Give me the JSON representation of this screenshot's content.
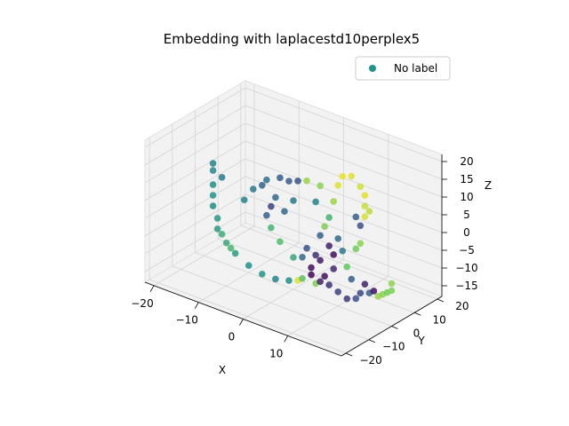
{
  "chart_data": {
    "type": "scatter",
    "title": "Embedding with laplacestd10perplex5",
    "xlabel": "X",
    "ylabel": "Y",
    "zlabel": "Z",
    "xlim": [
      -22,
      22
    ],
    "ylim": [
      -22,
      22
    ],
    "zlim": [
      -18,
      22
    ],
    "x_ticks": [
      -20,
      -10,
      0,
      10
    ],
    "y_ticks": [
      -20,
      -10,
      0,
      10,
      20
    ],
    "z_ticks": [
      -15,
      -10,
      -5,
      0,
      5,
      10,
      15,
      20
    ],
    "grid": true,
    "legend": {
      "position": "top-right",
      "entries": [
        "No label"
      ]
    },
    "series_color": "#21918c",
    "colormap": "viridis",
    "points": [
      {
        "x": -18,
        "y": 0,
        "z": 9,
        "c": 0.45
      },
      {
        "x": -18,
        "y": 0,
        "z": 7,
        "c": 0.47
      },
      {
        "x": -18,
        "y": 0,
        "z": 3,
        "c": 0.5
      },
      {
        "x": -18,
        "y": 0,
        "z": 0,
        "c": 0.52
      },
      {
        "x": -18,
        "y": 0,
        "z": -3,
        "c": 0.5
      },
      {
        "x": -17,
        "y": 0,
        "z": -6,
        "c": 0.53
      },
      {
        "x": -17,
        "y": 0,
        "z": -9,
        "c": 0.55
      },
      {
        "x": -15,
        "y": 0,
        "z": -12,
        "c": 0.6
      },
      {
        "x": -13,
        "y": 0,
        "z": -14,
        "c": 0.55
      },
      {
        "x": -10,
        "y": 0,
        "z": -16,
        "c": 0.5
      },
      {
        "x": -7,
        "y": 0,
        "z": -17,
        "c": 0.52
      },
      {
        "x": -4,
        "y": 0,
        "z": -17,
        "c": 0.45
      },
      {
        "x": -1,
        "y": 0,
        "z": -16,
        "c": 0.48
      },
      {
        "x": 1,
        "y": 0,
        "z": -15,
        "c": 0.95
      },
      {
        "x": -16,
        "y": 0,
        "z": 6,
        "c": 0.42
      },
      {
        "x": -16,
        "y": 0,
        "z": -10,
        "c": 0.62
      },
      {
        "x": -14,
        "y": 0,
        "z": -13,
        "c": 0.66
      },
      {
        "x": 2,
        "y": 0,
        "z": -14,
        "c": 0.72
      },
      {
        "x": 5,
        "y": 0,
        "z": -14,
        "c": 0.8
      },
      {
        "x": 6,
        "y": 0,
        "z": -13,
        "c": 0.1
      },
      {
        "x": 7,
        "y": 0,
        "z": -11,
        "c": 0.05
      },
      {
        "x": 8,
        "y": 0,
        "z": -13,
        "c": 0.15
      },
      {
        "x": 10,
        "y": 0,
        "z": -14,
        "c": 0.2
      },
      {
        "x": 12,
        "y": 0,
        "z": -15,
        "c": 0.18
      },
      {
        "x": 14,
        "y": 0,
        "z": -14,
        "c": 0.25
      },
      {
        "x": 15,
        "y": 0,
        "z": -12,
        "c": 0.22
      },
      {
        "x": 17,
        "y": 0,
        "z": -11,
        "c": 0.3
      },
      {
        "x": 18,
        "y": 0,
        "z": -10,
        "c": 0.05
      },
      {
        "x": 16,
        "y": 0,
        "z": -9,
        "c": 0.1
      },
      {
        "x": 19,
        "y": 0,
        "z": -11,
        "c": 0.85
      },
      {
        "x": 20,
        "y": 0,
        "z": -10,
        "c": 0.82
      },
      {
        "x": 21,
        "y": 0,
        "z": -9,
        "c": 0.78
      },
      {
        "x": 22,
        "y": 0,
        "z": -8,
        "c": 0.8
      },
      {
        "x": 22,
        "y": 0,
        "z": -6,
        "c": 0.83
      },
      {
        "x": 12,
        "y": 0,
        "z": -6,
        "c": 0.75
      },
      {
        "x": 9,
        "y": 0,
        "z": -4,
        "c": 0.05
      },
      {
        "x": 8,
        "y": 0,
        "z": -2,
        "c": 0.1
      },
      {
        "x": 6,
        "y": 0,
        "z": 0,
        "c": 0.3
      },
      {
        "x": 7,
        "y": 0,
        "z": 3,
        "c": 0.8
      },
      {
        "x": 5,
        "y": 0,
        "z": -6,
        "c": 0.15
      },
      {
        "x": 3,
        "y": 0,
        "z": -5,
        "c": 0.25
      },
      {
        "x": 2,
        "y": 0,
        "z": -8,
        "c": 0.35
      },
      {
        "x": 0,
        "y": 0,
        "z": -9,
        "c": 0.6
      },
      {
        "x": -3,
        "y": 0,
        "z": -6,
        "c": 0.7
      },
      {
        "x": -5,
        "y": 0,
        "z": -3,
        "c": 0.65
      },
      {
        "x": -6,
        "y": 0,
        "z": 0,
        "c": 0.3
      },
      {
        "x": -5,
        "y": 0,
        "z": 3,
        "c": 0.2
      },
      {
        "x": -4,
        "y": 0,
        "z": 6,
        "c": 0.35
      },
      {
        "x": -7,
        "y": 0,
        "z": 8,
        "c": 0.32
      },
      {
        "x": -6,
        "y": 0,
        "z": 10,
        "c": 0.38
      },
      {
        "x": -3,
        "y": 0,
        "z": 12,
        "c": 0.3
      },
      {
        "x": -1,
        "y": 0,
        "z": 12,
        "c": 0.28
      },
      {
        "x": 1,
        "y": 0,
        "z": 13,
        "c": 0.25
      },
      {
        "x": 3,
        "y": 0,
        "z": 14,
        "c": 0.85
      },
      {
        "x": 6,
        "y": 0,
        "z": 14,
        "c": 0.82
      },
      {
        "x": 10,
        "y": 0,
        "z": 16,
        "c": 0.95
      },
      {
        "x": 11,
        "y": 0,
        "z": 19,
        "c": 0.97
      },
      {
        "x": 13,
        "y": 0,
        "z": 20,
        "c": 0.95
      },
      {
        "x": 15,
        "y": 0,
        "z": 18,
        "c": 0.93
      },
      {
        "x": 16,
        "y": 0,
        "z": 16,
        "c": 0.96
      },
      {
        "x": 16,
        "y": 0,
        "z": 13,
        "c": 0.92
      },
      {
        "x": 17,
        "y": 0,
        "z": 12,
        "c": 0.9
      },
      {
        "x": 16,
        "y": 0,
        "z": 10,
        "c": 0.94
      },
      {
        "x": 14,
        "y": 0,
        "z": 9,
        "c": 0.3
      },
      {
        "x": 15,
        "y": 0,
        "z": 7,
        "c": 0.25
      },
      {
        "x": 15,
        "y": 0,
        "z": 2,
        "c": 0.82
      },
      {
        "x": 14,
        "y": 0,
        "z": 0,
        "c": 0.78
      },
      {
        "x": 11,
        "y": 0,
        "z": -2,
        "c": 0.4
      },
      {
        "x": 10,
        "y": 0,
        "z": 1,
        "c": 0.35
      },
      {
        "x": 8,
        "y": 0,
        "z": 6,
        "c": 0.65
      },
      {
        "x": 9,
        "y": 0,
        "z": 11,
        "c": 0.85
      },
      {
        "x": 5,
        "y": 0,
        "z": 9,
        "c": 0.45
      },
      {
        "x": 0,
        "y": 0,
        "z": 7,
        "c": 0.4
      },
      {
        "x": -2,
        "y": 0,
        "z": 3,
        "c": 0.35
      },
      {
        "x": -9,
        "y": 0,
        "z": 6,
        "c": 0.4
      },
      {
        "x": -11,
        "y": 0,
        "z": 2,
        "c": 0.45
      },
      {
        "x": 4,
        "y": 0,
        "z": -12,
        "c": 0.02
      },
      {
        "x": 4,
        "y": 0,
        "z": -10,
        "c": 0.04
      },
      {
        "x": 6,
        "y": 0,
        "z": -7,
        "c": 0.08
      },
      {
        "x": 9,
        "y": 0,
        "z": -8,
        "c": 0.12
      },
      {
        "x": 13,
        "y": 0,
        "z": -9,
        "c": 0.3
      }
    ]
  }
}
